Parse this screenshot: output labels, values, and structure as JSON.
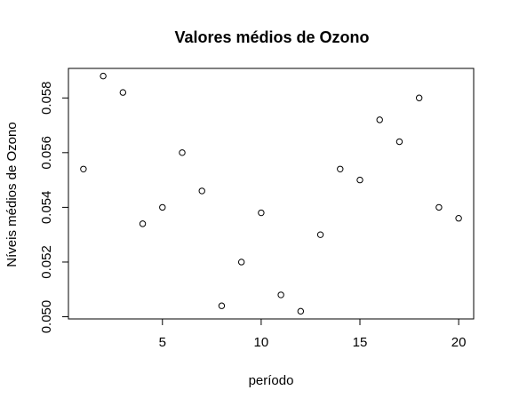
{
  "chart_data": {
    "type": "scatter",
    "title": "Valores médios de Ozono",
    "xlabel": "período",
    "ylabel": "Níveis médios de Ozono",
    "xlim": [
      0.24,
      20.76
    ],
    "ylim": [
      0.04992,
      0.05908
    ],
    "xticks": [
      5,
      10,
      15,
      20
    ],
    "xtick_labels": [
      "5",
      "10",
      "15",
      "20"
    ],
    "yticks": [
      0.05,
      0.052,
      0.054,
      0.056,
      0.058
    ],
    "ytick_labels": [
      "0.050",
      "0.052",
      "0.054",
      "0.056",
      "0.058"
    ],
    "grid": false,
    "legend": "none",
    "marker": "open-circle",
    "x": [
      1,
      2,
      3,
      4,
      5,
      6,
      7,
      8,
      9,
      10,
      11,
      12,
      13,
      14,
      15,
      16,
      17,
      18,
      19,
      20
    ],
    "y": [
      0.0554,
      0.0588,
      0.0582,
      0.0534,
      0.054,
      0.056,
      0.0546,
      0.0504,
      0.052,
      0.0538,
      0.0508,
      0.0502,
      0.053,
      0.0554,
      0.055,
      0.0572,
      0.0564,
      0.058,
      0.054,
      0.0536
    ]
  }
}
